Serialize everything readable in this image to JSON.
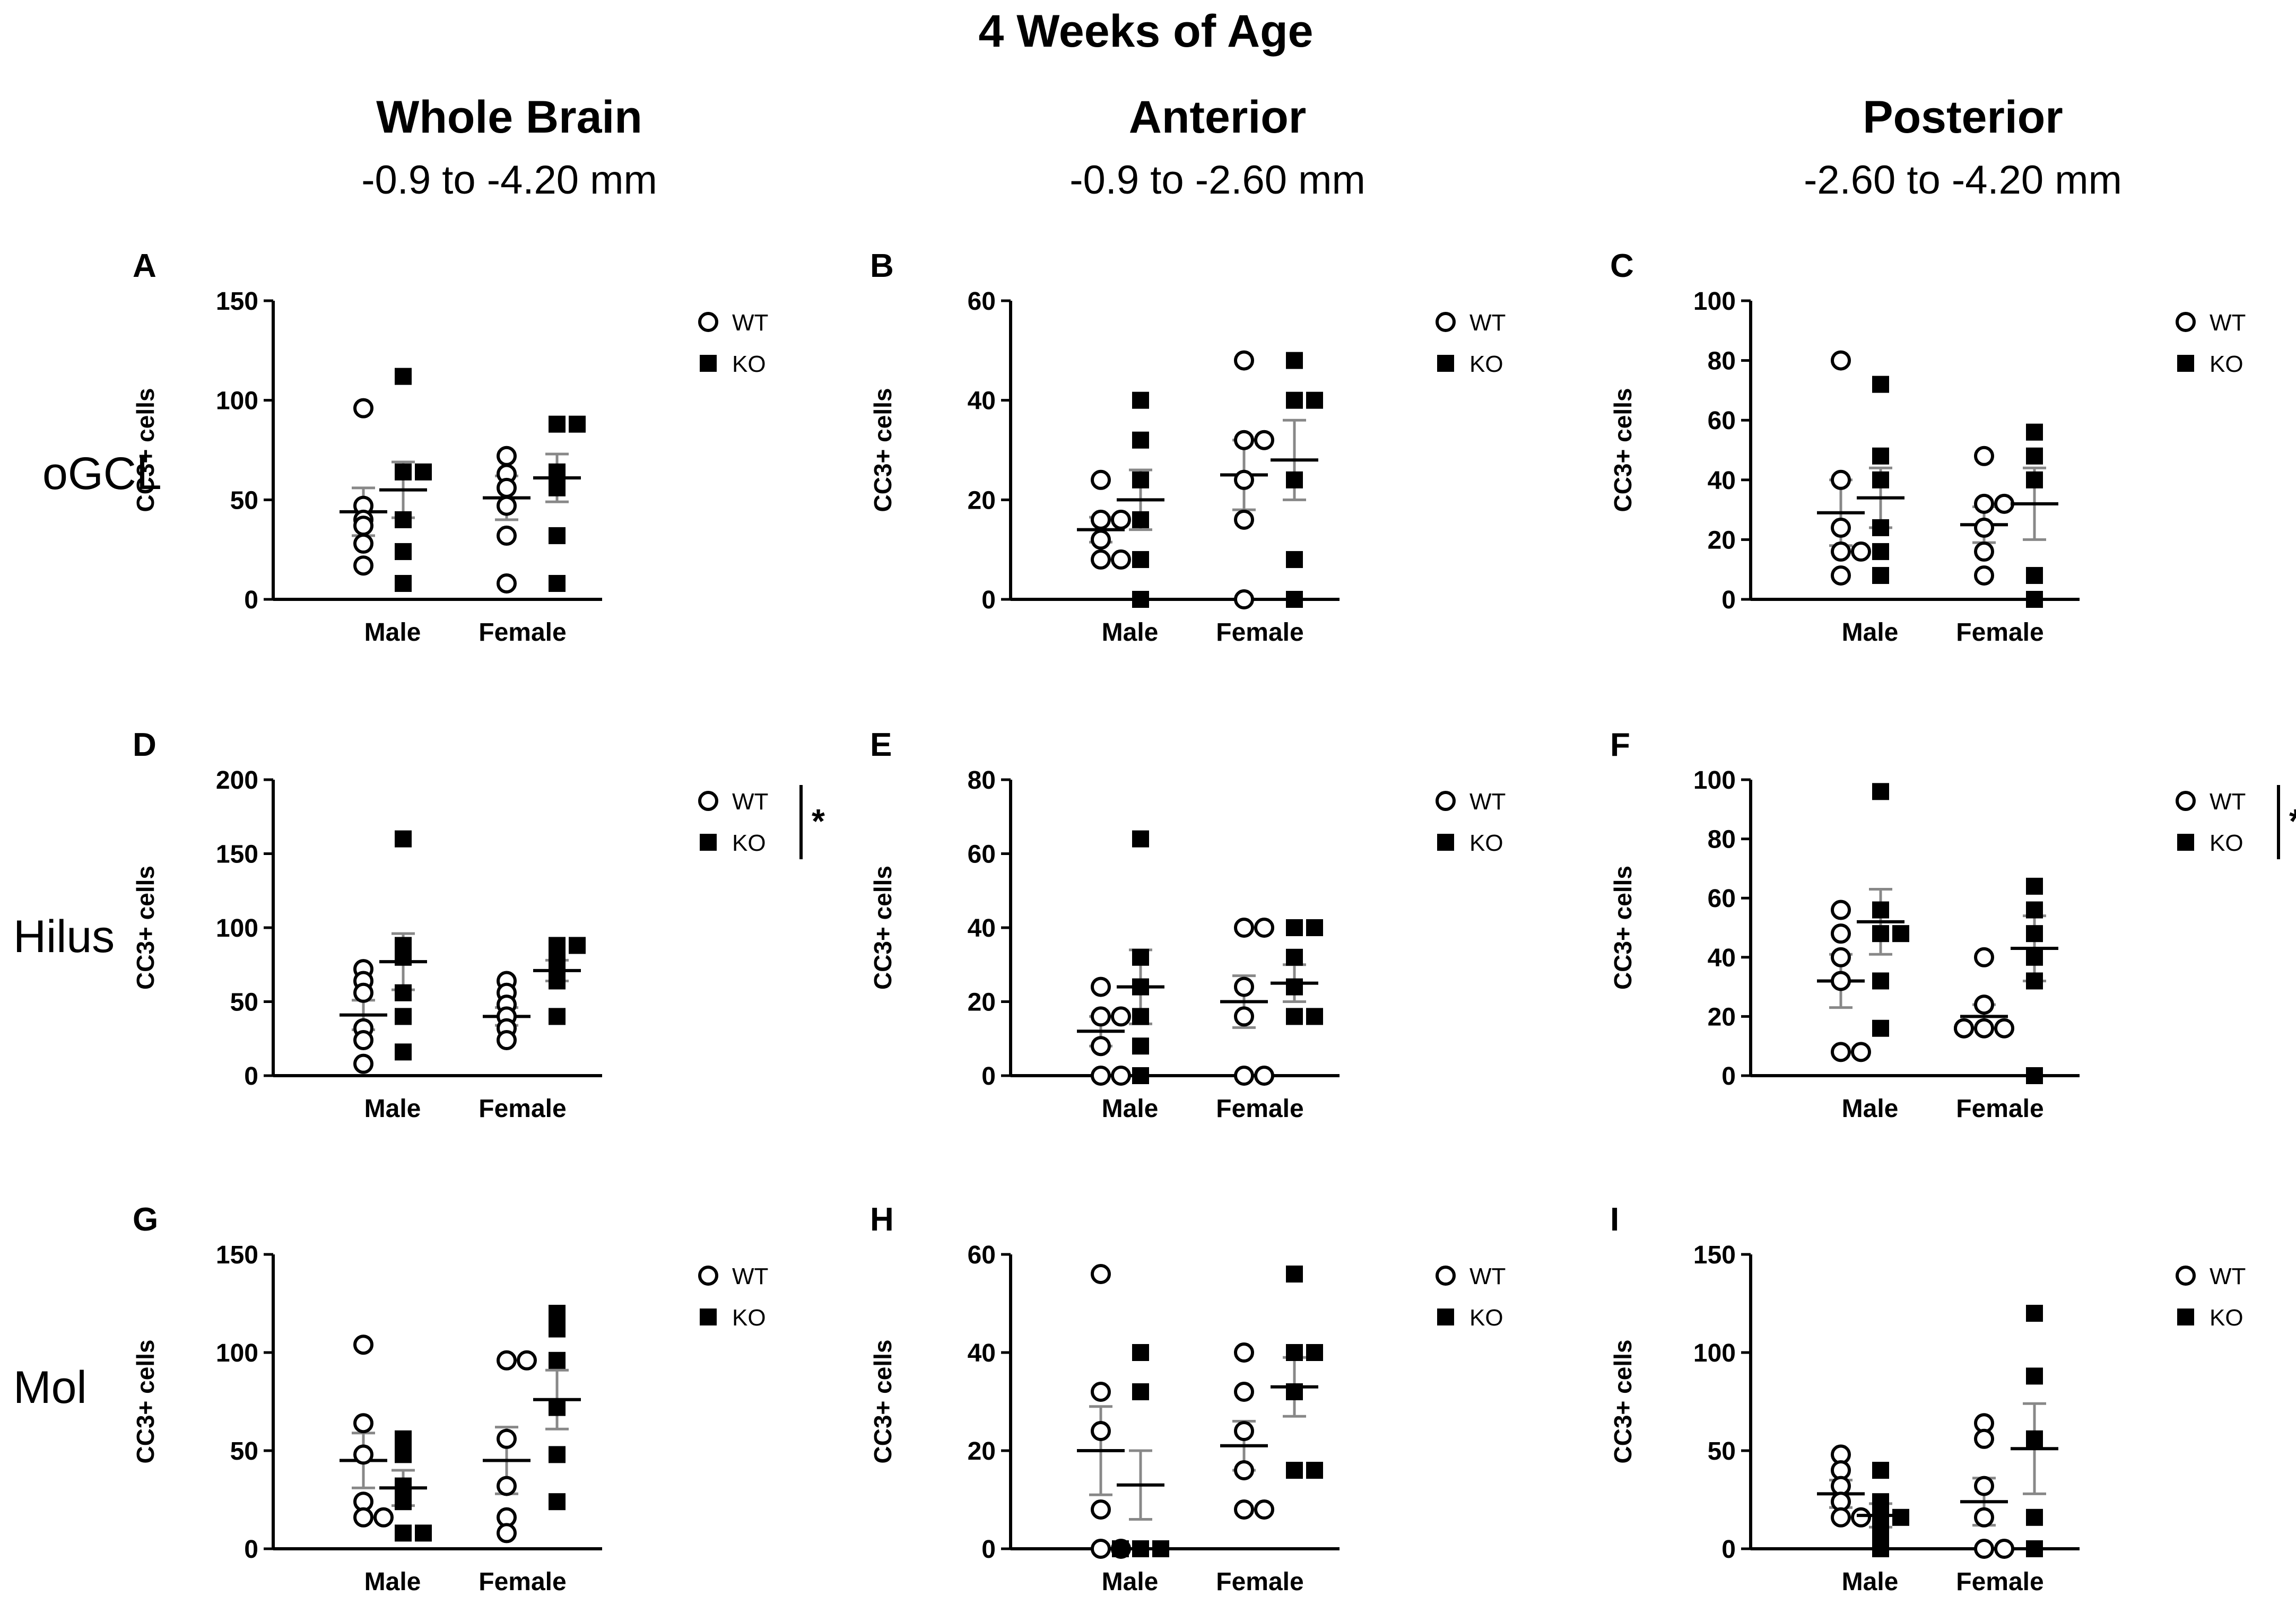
{
  "figure_title": "4 Weeks of Age",
  "columns": [
    {
      "title": "Whole Brain",
      "subtitle": "-0.9 to -4.20 mm"
    },
    {
      "title": "Anterior",
      "subtitle": "-0.9 to -2.60 mm"
    },
    {
      "title": "Posterior",
      "subtitle": "-2.60 to -4.20 mm"
    }
  ],
  "rows": [
    {
      "label": "oGCL"
    },
    {
      "label": "Hilus"
    },
    {
      "label": "Mol"
    }
  ],
  "legend": {
    "wt": "WT",
    "ko": "KO"
  },
  "significance_mark": "*",
  "colors": {
    "wt_marker": "#ffffff",
    "ko_marker": "#000000",
    "mean_line": "#000000",
    "error_bar": "#888888"
  },
  "chart_data": [
    {
      "panel": "A",
      "type": "scatter",
      "ylabel": "CC3+ cells",
      "ylim": [
        0,
        150
      ],
      "yticks": [
        0,
        50,
        100,
        150
      ],
      "categories": [
        "Male",
        "Female"
      ],
      "significant": false,
      "series": [
        {
          "name": "WT",
          "values": [
            [
              96,
              47,
              40,
              37,
              28,
              17
            ],
            [
              72,
              63,
              56,
              47,
              32,
              8
            ]
          ],
          "mean": [
            44,
            51
          ],
          "sem": [
            12,
            11
          ]
        },
        {
          "name": "KO",
          "values": [
            [
              112,
              64,
              64,
              40,
              24,
              8
            ],
            [
              88,
              88,
              64,
              56,
              32,
              8
            ]
          ],
          "mean": [
            55,
            61
          ],
          "sem": [
            14,
            12
          ]
        }
      ]
    },
    {
      "panel": "B",
      "type": "scatter",
      "ylabel": "CC3+ cells",
      "ylim": [
        0,
        60
      ],
      "yticks": [
        0,
        20,
        40,
        60
      ],
      "categories": [
        "Male",
        "Female"
      ],
      "significant": false,
      "series": [
        {
          "name": "WT",
          "values": [
            [
              24,
              16,
              16,
              12,
              8,
              8
            ],
            [
              48,
              32,
              32,
              24,
              16,
              0
            ]
          ],
          "mean": [
            14,
            25
          ],
          "sem": [
            2.5,
            7
          ]
        },
        {
          "name": "KO",
          "values": [
            [
              40,
              32,
              24,
              16,
              8,
              0
            ],
            [
              48,
              40,
              40,
              24,
              8,
              0
            ]
          ],
          "mean": [
            20,
            28
          ],
          "sem": [
            6,
            8
          ]
        }
      ]
    },
    {
      "panel": "C",
      "type": "scatter",
      "ylabel": "CC3+ cells",
      "ylim": [
        0,
        100
      ],
      "yticks": [
        0,
        20,
        40,
        60,
        80,
        100
      ],
      "categories": [
        "Male",
        "Female"
      ],
      "significant": false,
      "series": [
        {
          "name": "WT",
          "values": [
            [
              80,
              40,
              24,
              16,
              16,
              8
            ],
            [
              48,
              32,
              32,
              24,
              16,
              8
            ]
          ],
          "mean": [
            29,
            25
          ],
          "sem": [
            11,
            6
          ]
        },
        {
          "name": "KO",
          "values": [
            [
              72,
              48,
              40,
              24,
              16,
              8
            ],
            [
              56,
              48,
              40,
              8,
              0
            ]
          ],
          "mean": [
            34,
            32
          ],
          "sem": [
            10,
            12
          ]
        }
      ]
    },
    {
      "panel": "D",
      "type": "scatter",
      "ylabel": "CC3+ cells",
      "ylim": [
        0,
        200
      ],
      "yticks": [
        0,
        50,
        100,
        150,
        200
      ],
      "categories": [
        "Male",
        "Female"
      ],
      "significant": true,
      "series": [
        {
          "name": "WT",
          "values": [
            [
              72,
              64,
              56,
              32,
              24,
              8
            ],
            [
              64,
              56,
              48,
              40,
              32,
              24
            ]
          ],
          "mean": [
            41,
            40
          ],
          "sem": [
            10,
            6
          ]
        },
        {
          "name": "KO",
          "values": [
            [
              160,
              88,
              80,
              56,
              40,
              16
            ],
            [
              88,
              88,
              80,
              72,
              64,
              40
            ]
          ],
          "mean": [
            77,
            71
          ],
          "sem": [
            19,
            7
          ]
        }
      ]
    },
    {
      "panel": "E",
      "type": "scatter",
      "ylabel": "CC3+ cells",
      "ylim": [
        0,
        80
      ],
      "yticks": [
        0,
        20,
        40,
        60,
        80
      ],
      "categories": [
        "Male",
        "Female"
      ],
      "significant": false,
      "series": [
        {
          "name": "WT",
          "values": [
            [
              24,
              16,
              16,
              8,
              0,
              0
            ],
            [
              40,
              40,
              24,
              16,
              0,
              0
            ]
          ],
          "mean": [
            12,
            20
          ],
          "sem": [
            4,
            7
          ]
        },
        {
          "name": "KO",
          "values": [
            [
              64,
              32,
              24,
              16,
              8,
              0
            ],
            [
              40,
              40,
              32,
              24,
              16,
              16
            ]
          ],
          "mean": [
            24,
            25
          ],
          "sem": [
            10,
            5
          ]
        }
      ]
    },
    {
      "panel": "F",
      "type": "scatter",
      "ylabel": "CC3+ cells",
      "ylim": [
        0,
        100
      ],
      "yticks": [
        0,
        20,
        40,
        60,
        80,
        100
      ],
      "categories": [
        "Male",
        "Female"
      ],
      "significant": true,
      "series": [
        {
          "name": "WT",
          "values": [
            [
              56,
              48,
              40,
              32,
              8,
              8
            ],
            [
              40,
              24,
              16,
              16,
              16,
              16
            ]
          ],
          "mean": [
            32,
            20
          ],
          "sem": [
            9,
            4
          ]
        },
        {
          "name": "KO",
          "values": [
            [
              96,
              56,
              48,
              48,
              32,
              16
            ],
            [
              64,
              56,
              48,
              40,
              32,
              0
            ]
          ],
          "mean": [
            52,
            43
          ],
          "sem": [
            11,
            11
          ]
        }
      ]
    },
    {
      "panel": "G",
      "type": "scatter",
      "ylabel": "CC3+ cells",
      "ylim": [
        0,
        150
      ],
      "yticks": [
        0,
        50,
        100,
        150
      ],
      "categories": [
        "Male",
        "Female"
      ],
      "significant": false,
      "series": [
        {
          "name": "WT",
          "values": [
            [
              104,
              64,
              48,
              24,
              16,
              16
            ],
            [
              96,
              96,
              56,
              32,
              16,
              8
            ]
          ],
          "mean": [
            45,
            45
          ],
          "sem": [
            14,
            17
          ]
        },
        {
          "name": "KO",
          "values": [
            [
              56,
              48,
              32,
              24,
              8,
              8
            ],
            [
              120,
              112,
              96,
              72,
              48,
              24
            ]
          ],
          "mean": [
            31,
            76
          ],
          "sem": [
            9,
            15
          ]
        }
      ]
    },
    {
      "panel": "H",
      "type": "scatter",
      "ylabel": "CC3+ cells",
      "ylim": [
        0,
        60
      ],
      "yticks": [
        0,
        20,
        40,
        60
      ],
      "categories": [
        "Male",
        "Female"
      ],
      "significant": false,
      "series": [
        {
          "name": "WT",
          "values": [
            [
              56,
              32,
              24,
              8,
              0,
              0
            ],
            [
              40,
              32,
              24,
              16,
              8,
              8
            ]
          ],
          "mean": [
            20,
            21
          ],
          "sem": [
            9,
            5
          ]
        },
        {
          "name": "KO",
          "values": [
            [
              40,
              32,
              0,
              0,
              0,
              0
            ],
            [
              56,
              40,
              40,
              32,
              16,
              16
            ]
          ],
          "mean": [
            13,
            33
          ],
          "sem": [
            7,
            6
          ]
        }
      ]
    },
    {
      "panel": "I",
      "type": "scatter",
      "ylabel": "CC3+ cells",
      "ylim": [
        0,
        150
      ],
      "yticks": [
        0,
        50,
        100,
        150
      ],
      "categories": [
        "Male",
        "Female"
      ],
      "significant": false,
      "series": [
        {
          "name": "WT",
          "values": [
            [
              48,
              40,
              32,
              24,
              16,
              16
            ],
            [
              64,
              56,
              32,
              16,
              0,
              0
            ]
          ],
          "mean": [
            28,
            24
          ],
          "sem": [
            7,
            12
          ]
        },
        {
          "name": "KO",
          "values": [
            [
              40,
              24,
              16,
              16,
              8,
              0
            ],
            [
              120,
              88,
              56,
              16,
              0
            ]
          ],
          "mean": [
            17,
            51
          ],
          "sem": [
            6,
            23
          ]
        }
      ]
    }
  ]
}
